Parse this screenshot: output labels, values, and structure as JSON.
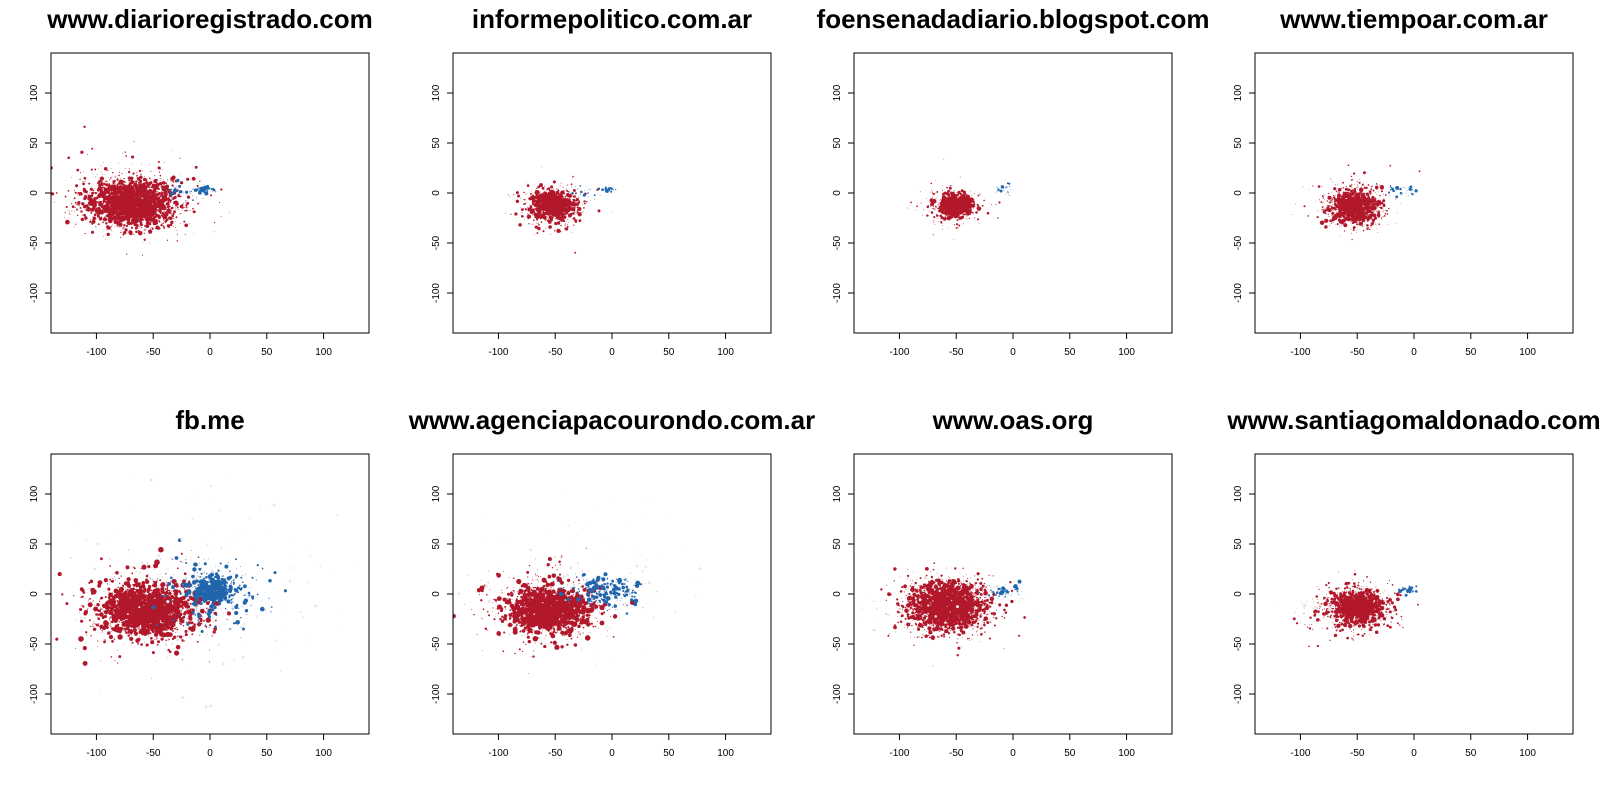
{
  "colors": {
    "red": "#b2182b",
    "blue": "#2166ac",
    "light_gray": "#e6e6e6"
  },
  "chart_data": [
    {
      "type": "scatter",
      "title": "www.diarioregistrado.com",
      "xlim": [
        -140,
        140
      ],
      "ylim": [
        -140,
        140
      ],
      "xticks": [
        "-100",
        "-50",
        "0",
        "50",
        "100"
      ],
      "yticks": [
        "-100",
        "-50",
        "0",
        "50",
        "100"
      ],
      "grid": false,
      "clusters": [
        {
          "color": "red",
          "center": [
            -68,
            -10
          ],
          "spread": [
            18,
            11
          ],
          "count": 2600,
          "max_size": 1.3
        },
        {
          "color": "red",
          "center": [
            -70,
            -8
          ],
          "spread": [
            32,
            20
          ],
          "count": 350,
          "max_size": 1.0
        },
        {
          "color": "blue",
          "center": [
            -4,
            3
          ],
          "spread": [
            5,
            1.5
          ],
          "count": 60,
          "max_size": 1.2
        },
        {
          "color": "blue",
          "center": [
            -28,
            0
          ],
          "spread": [
            8,
            5
          ],
          "count": 35,
          "max_size": 0.9
        }
      ]
    },
    {
      "type": "scatter",
      "title": "informepolitico.com.ar",
      "xlim": [
        -140,
        140
      ],
      "ylim": [
        -140,
        140
      ],
      "xticks": [
        "-100",
        "-50",
        "0",
        "50",
        "100"
      ],
      "yticks": [
        "-100",
        "-50",
        "0",
        "50",
        "100"
      ],
      "grid": false,
      "clusters": [
        {
          "color": "red",
          "center": [
            -52,
            -12
          ],
          "spread": [
            9,
            7
          ],
          "count": 1200,
          "max_size": 1.2
        },
        {
          "color": "red",
          "center": [
            -55,
            -12
          ],
          "spread": [
            16,
            13
          ],
          "count": 250,
          "max_size": 0.9
        },
        {
          "color": "blue",
          "center": [
            -3,
            4
          ],
          "spread": [
            3,
            1.5
          ],
          "count": 35,
          "max_size": 1.2
        },
        {
          "color": "blue",
          "center": [
            -24,
            -1
          ],
          "spread": [
            6,
            4
          ],
          "count": 20,
          "max_size": 0.8
        }
      ]
    },
    {
      "type": "scatter",
      "title": "foensenadadiario.blogspot.com",
      "xlim": [
        -140,
        140
      ],
      "ylim": [
        -140,
        140
      ],
      "xticks": [
        "-100",
        "-50",
        "0",
        "50",
        "100"
      ],
      "yticks": [
        "-100",
        "-50",
        "0",
        "50",
        "100"
      ],
      "grid": false,
      "clusters": [
        {
          "color": "red",
          "center": [
            -51,
            -12
          ],
          "spread": [
            7,
            5
          ],
          "count": 1000,
          "max_size": 1.3
        },
        {
          "color": "red",
          "center": [
            -55,
            -14
          ],
          "spread": [
            14,
            11
          ],
          "count": 200,
          "max_size": 0.9
        },
        {
          "color": "blue",
          "center": [
            -8,
            3
          ],
          "spread": [
            5,
            3
          ],
          "count": 25,
          "max_size": 0.9
        }
      ]
    },
    {
      "type": "scatter",
      "title": "www.tiempoar.com.ar",
      "xlim": [
        -140,
        140
      ],
      "ylim": [
        -140,
        140
      ],
      "xticks": [
        "-100",
        "-50",
        "0",
        "50",
        "100"
      ],
      "yticks": [
        "-100",
        "-50",
        "0",
        "50",
        "100"
      ],
      "grid": false,
      "clusters": [
        {
          "color": "red",
          "center": [
            -52,
            -13
          ],
          "spread": [
            10,
            8
          ],
          "count": 1300,
          "max_size": 1.2
        },
        {
          "color": "red",
          "center": [
            -55,
            -13
          ],
          "spread": [
            17,
            13
          ],
          "count": 280,
          "max_size": 0.9
        },
        {
          "color": "blue",
          "center": [
            -10,
            2
          ],
          "spread": [
            8,
            3
          ],
          "count": 40,
          "max_size": 1.0
        }
      ]
    },
    {
      "type": "scatter",
      "title": "fb.me",
      "xlim": [
        -140,
        140
      ],
      "ylim": [
        -140,
        140
      ],
      "xticks": [
        "-100",
        "-50",
        "0",
        "50",
        "100"
      ],
      "yticks": [
        "-100",
        "-50",
        "0",
        "50",
        "100"
      ],
      "grid": false,
      "clusters": [
        {
          "color": "red",
          "center": [
            -55,
            -16
          ],
          "spread": [
            18,
            11
          ],
          "count": 2500,
          "max_size": 1.5
        },
        {
          "color": "red",
          "center": [
            -58,
            -15
          ],
          "spread": [
            30,
            22
          ],
          "count": 500,
          "max_size": 1.6
        },
        {
          "color": "blue",
          "center": [
            2,
            5
          ],
          "spread": [
            8,
            6
          ],
          "count": 600,
          "max_size": 1.5
        },
        {
          "color": "blue",
          "center": [
            0,
            0
          ],
          "spread": [
            22,
            18
          ],
          "count": 300,
          "max_size": 1.3
        },
        {
          "color": "light_gray",
          "center": [
            -20,
            10
          ],
          "spread": [
            60,
            50
          ],
          "count": 180,
          "max_size": 0.8
        }
      ]
    },
    {
      "type": "scatter",
      "title": "www.agenciapacourondo.com.ar",
      "xlim": [
        -140,
        140
      ],
      "ylim": [
        -140,
        140
      ],
      "xticks": [
        "-100",
        "-50",
        "0",
        "50",
        "100"
      ],
      "yticks": [
        "-100",
        "-50",
        "0",
        "50",
        "100"
      ],
      "grid": false,
      "clusters": [
        {
          "color": "red",
          "center": [
            -55,
            -16
          ],
          "spread": [
            15,
            10
          ],
          "count": 2300,
          "max_size": 1.5
        },
        {
          "color": "red",
          "center": [
            -60,
            -15
          ],
          "spread": [
            28,
            20
          ],
          "count": 450,
          "max_size": 1.5
        },
        {
          "color": "blue",
          "center": [
            -8,
            2
          ],
          "spread": [
            16,
            8
          ],
          "count": 280,
          "max_size": 1.4
        },
        {
          "color": "light_gray",
          "center": [
            -30,
            10
          ],
          "spread": [
            50,
            40
          ],
          "count": 120,
          "max_size": 0.8
        }
      ]
    },
    {
      "type": "scatter",
      "title": "www.oas.org",
      "xlim": [
        -140,
        140
      ],
      "ylim": [
        -140,
        140
      ],
      "xticks": [
        "-100",
        "-50",
        "0",
        "50",
        "100"
      ],
      "yticks": [
        "-100",
        "-50",
        "0",
        "50",
        "100"
      ],
      "grid": false,
      "clusters": [
        {
          "color": "red",
          "center": [
            -58,
            -12
          ],
          "spread": [
            15,
            11
          ],
          "count": 2800,
          "max_size": 1.3
        },
        {
          "color": "red",
          "center": [
            -60,
            -12
          ],
          "spread": [
            24,
            17
          ],
          "count": 400,
          "max_size": 1.0
        },
        {
          "color": "blue",
          "center": [
            -8,
            2
          ],
          "spread": [
            7,
            3
          ],
          "count": 70,
          "max_size": 1.1
        },
        {
          "color": "light_gray",
          "center": [
            -70,
            -10
          ],
          "spread": [
            30,
            20
          ],
          "count": 60,
          "max_size": 0.8
        }
      ]
    },
    {
      "type": "scatter",
      "title": "www.santiagomaldonado.com",
      "xlim": [
        -140,
        140
      ],
      "ylim": [
        -140,
        140
      ],
      "xticks": [
        "-100",
        "-50",
        "0",
        "50",
        "100"
      ],
      "yticks": [
        "-100",
        "-50",
        "0",
        "50",
        "100"
      ],
      "grid": false,
      "clusters": [
        {
          "color": "red",
          "center": [
            -50,
            -13
          ],
          "spread": [
            11,
            8
          ],
          "count": 1600,
          "max_size": 1.2
        },
        {
          "color": "red",
          "center": [
            -53,
            -13
          ],
          "spread": [
            19,
            14
          ],
          "count": 300,
          "max_size": 1.0
        },
        {
          "color": "blue",
          "center": [
            -5,
            4
          ],
          "spread": [
            4,
            2
          ],
          "count": 45,
          "max_size": 1.1
        },
        {
          "color": "light_gray",
          "center": [
            -90,
            -12
          ],
          "spread": [
            12,
            6
          ],
          "count": 50,
          "max_size": 0.9
        }
      ]
    }
  ]
}
